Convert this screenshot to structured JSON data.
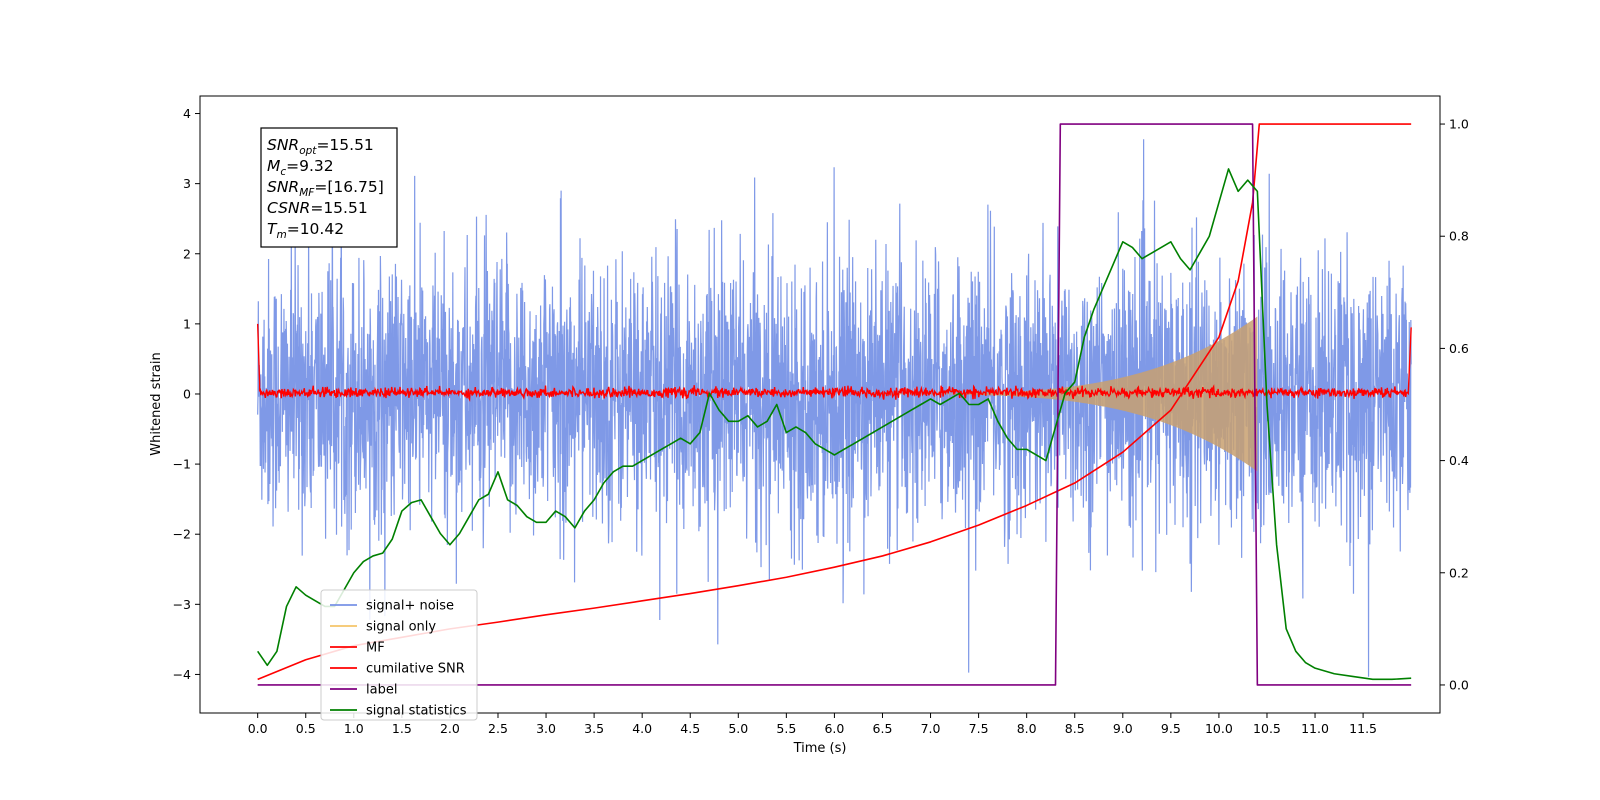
{
  "chart_data": {
    "type": "line",
    "xlabel": "Time (s)",
    "ylabel_left": "Whitened strain",
    "ylabel_right": "",
    "xlim": [
      -0.6,
      12.3
    ],
    "ylim_left": [
      -4.55,
      4.25
    ],
    "ylim_right": [
      -0.05,
      1.05
    ],
    "x_ticks": [
      "0.0",
      "0.5",
      "1.0",
      "1.5",
      "2.0",
      "2.5",
      "3.0",
      "3.5",
      "4.0",
      "4.5",
      "5.0",
      "5.5",
      "6.0",
      "6.5",
      "7.0",
      "7.5",
      "8.0",
      "8.5",
      "9.0",
      "9.5",
      "10.0",
      "10.5",
      "11.0",
      "11.5"
    ],
    "y_ticks_left": [
      "4",
      "3",
      "2",
      "1",
      "0",
      "−1",
      "−2",
      "−3",
      "−4"
    ],
    "y_ticks_right": [
      "1.0",
      "0.8",
      "0.6",
      "0.4",
      "0.2",
      "0.0"
    ],
    "info_box": [
      {
        "var": "SNR",
        "sub": "opt",
        "value": "=15.51"
      },
      {
        "var": "M",
        "sub": "c",
        "value": "=9.32"
      },
      {
        "var": "SNR",
        "sub": "MF",
        "value": "=[16.75]"
      },
      {
        "var": "CSNR",
        "sub": "",
        "value": "=15.51"
      },
      {
        "var": "T",
        "sub": "m",
        "value": "=10.42"
      }
    ],
    "legend_placement": "lower-left",
    "series": [
      {
        "name": "signal+ noise",
        "color": "#7893e6",
        "axis": "left",
        "description_range": [
          0,
          12
        ]
      },
      {
        "name": "signal only",
        "color": "#f5c56a",
        "axis": "left"
      },
      {
        "name": "MF",
        "color": "#ff0000",
        "axis": "left"
      },
      {
        "name": "cumilative SNR",
        "color": "#ff0000",
        "axis": "right",
        "x": [
          0.0,
          0.5,
          1.0,
          1.5,
          2.0,
          2.5,
          3.0,
          3.5,
          4.0,
          4.5,
          5.0,
          5.5,
          6.0,
          6.5,
          7.0,
          7.5,
          8.0,
          8.5,
          9.0,
          9.5,
          10.0,
          10.2,
          10.35,
          10.42,
          12.0
        ],
        "values": [
          0.01,
          0.045,
          0.07,
          0.085,
          0.1,
          0.112,
          0.125,
          0.137,
          0.15,
          0.163,
          0.177,
          0.192,
          0.21,
          0.23,
          0.255,
          0.285,
          0.32,
          0.36,
          0.415,
          0.49,
          0.62,
          0.72,
          0.86,
          1.0,
          1.0
        ]
      },
      {
        "name": "label",
        "color": "#800080",
        "axis": "right",
        "x": [
          0.0,
          8.3,
          8.35,
          10.35,
          10.4,
          12.0
        ],
        "values": [
          0.0,
          0.0,
          1.0,
          1.0,
          0.0,
          0.0
        ]
      },
      {
        "name": "signal statistics",
        "color": "#008000",
        "axis": "right",
        "x": [
          0.0,
          0.1,
          0.2,
          0.3,
          0.4,
          0.5,
          0.6,
          0.7,
          0.8,
          0.9,
          1.0,
          1.1,
          1.2,
          1.3,
          1.4,
          1.5,
          1.6,
          1.7,
          1.8,
          1.9,
          2.0,
          2.1,
          2.2,
          2.3,
          2.4,
          2.5,
          2.6,
          2.7,
          2.8,
          2.9,
          3.0,
          3.1,
          3.2,
          3.3,
          3.4,
          3.5,
          3.6,
          3.7,
          3.8,
          3.9,
          4.0,
          4.1,
          4.2,
          4.3,
          4.4,
          4.5,
          4.6,
          4.7,
          4.8,
          4.9,
          5.0,
          5.1,
          5.2,
          5.3,
          5.4,
          5.5,
          5.6,
          5.7,
          5.8,
          5.9,
          6.0,
          6.1,
          6.2,
          6.3,
          6.4,
          6.5,
          6.6,
          6.7,
          6.8,
          6.9,
          7.0,
          7.1,
          7.2,
          7.3,
          7.4,
          7.5,
          7.6,
          7.7,
          7.8,
          7.9,
          8.0,
          8.1,
          8.2,
          8.3,
          8.4,
          8.5,
          8.6,
          8.7,
          8.8,
          8.9,
          9.0,
          9.1,
          9.2,
          9.3,
          9.4,
          9.5,
          9.6,
          9.7,
          9.8,
          9.9,
          10.0,
          10.1,
          10.2,
          10.3,
          10.4,
          10.5,
          10.6,
          10.7,
          10.8,
          10.9,
          11.0,
          11.2,
          11.4,
          11.6,
          11.8,
          12.0
        ],
        "values": [
          0.06,
          0.035,
          0.06,
          0.14,
          0.175,
          0.16,
          0.15,
          0.14,
          0.14,
          0.17,
          0.2,
          0.22,
          0.23,
          0.235,
          0.26,
          0.31,
          0.325,
          0.33,
          0.3,
          0.27,
          0.25,
          0.27,
          0.3,
          0.33,
          0.34,
          0.38,
          0.33,
          0.32,
          0.3,
          0.29,
          0.29,
          0.31,
          0.3,
          0.28,
          0.31,
          0.33,
          0.36,
          0.38,
          0.39,
          0.39,
          0.4,
          0.41,
          0.42,
          0.43,
          0.44,
          0.43,
          0.45,
          0.52,
          0.49,
          0.47,
          0.47,
          0.48,
          0.46,
          0.47,
          0.5,
          0.45,
          0.46,
          0.45,
          0.43,
          0.42,
          0.41,
          0.42,
          0.43,
          0.44,
          0.45,
          0.46,
          0.47,
          0.48,
          0.49,
          0.5,
          0.51,
          0.5,
          0.51,
          0.52,
          0.5,
          0.5,
          0.51,
          0.47,
          0.44,
          0.42,
          0.42,
          0.41,
          0.4,
          0.46,
          0.52,
          0.54,
          0.62,
          0.67,
          0.71,
          0.75,
          0.79,
          0.78,
          0.76,
          0.77,
          0.78,
          0.79,
          0.76,
          0.74,
          0.77,
          0.8,
          0.86,
          0.92,
          0.88,
          0.9,
          0.88,
          0.5,
          0.25,
          0.1,
          0.06,
          0.04,
          0.03,
          0.02,
          0.015,
          0.01,
          0.01,
          0.012
        ]
      }
    ]
  }
}
